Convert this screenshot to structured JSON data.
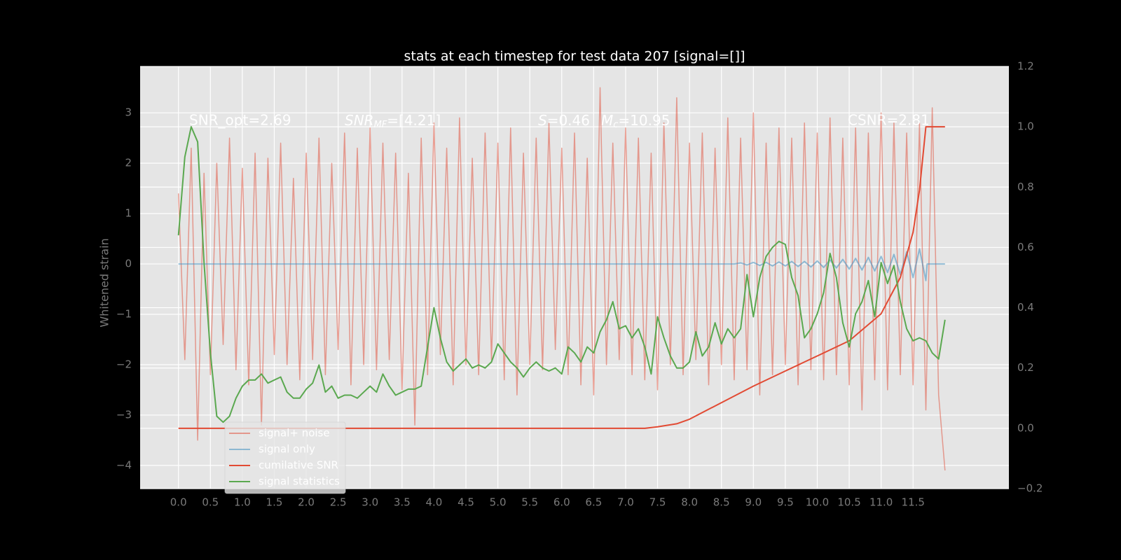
{
  "chart_data": {
    "type": "line",
    "title": "stats at each timestep for test data 207 [signal=[]]",
    "ylabel": "Whitened strain",
    "annotations": [
      "SNR_opt=2.69",
      {
        "text": "SNR",
        "sub": "MF",
        "rest": "=[4.21]"
      },
      {
        "text": "S",
        "rest": "=0.46"
      },
      {
        "text": "M",
        "sub": "c",
        "rest": "=10.95"
      },
      "CSNR=2.81"
    ],
    "x": [
      0,
      0.1,
      0.2,
      0.3,
      0.4,
      0.5,
      0.6,
      0.7,
      0.8,
      0.9,
      1,
      1.1,
      1.2,
      1.3,
      1.4,
      1.5,
      1.6,
      1.7,
      1.8,
      1.9,
      2,
      2.1,
      2.2,
      2.3,
      2.4,
      2.5,
      2.6,
      2.7,
      2.8,
      2.9,
      3,
      3.1,
      3.2,
      3.3,
      3.4,
      3.5,
      3.6,
      3.7,
      3.8,
      3.9,
      4,
      4.1,
      4.2,
      4.3,
      4.4,
      4.5,
      4.6,
      4.7,
      4.8,
      4.9,
      5,
      5.1,
      5.2,
      5.3,
      5.4,
      5.5,
      5.6,
      5.7,
      5.8,
      5.9,
      6,
      6.1,
      6.2,
      6.3,
      6.4,
      6.5,
      6.6,
      6.7,
      6.8,
      6.9,
      7,
      7.1,
      7.2,
      7.3,
      7.4,
      7.5,
      7.6,
      7.7,
      7.8,
      7.9,
      8,
      8.1,
      8.2,
      8.3,
      8.4,
      8.5,
      8.6,
      8.7,
      8.8,
      8.9,
      9,
      9.1,
      9.2,
      9.3,
      9.4,
      9.5,
      9.6,
      9.7,
      9.8,
      9.9,
      10,
      10.1,
      10.2,
      10.3,
      10.4,
      10.5,
      10.6,
      10.7,
      10.8,
      10.9,
      11,
      11.1,
      11.2,
      11.3,
      11.4,
      11.5,
      11.6,
      11.7,
      11.8,
      11.9,
      12
    ],
    "series": [
      {
        "name": "signal+ noise",
        "color": "#E24A33",
        "alpha": 0.5,
        "width": 1.5,
        "values": [
          1.4,
          -1.9,
          2.3,
          -3.5,
          1.8,
          -2.2,
          2.0,
          -1.6,
          2.5,
          -2.1,
          1.9,
          -2.4,
          2.2,
          -3.2,
          2.1,
          -1.8,
          2.4,
          -2.0,
          1.7,
          -2.3,
          2.2,
          -1.9,
          2.5,
          -2.2,
          2.0,
          -1.7,
          2.6,
          -2.4,
          2.3,
          -2.0,
          2.7,
          -2.1,
          2.4,
          -1.9,
          2.2,
          -2.5,
          1.8,
          -3.2,
          2.5,
          -2.2,
          2.8,
          -1.8,
          2.3,
          -2.4,
          2.9,
          -2.0,
          2.1,
          -2.2,
          2.6,
          -1.9,
          2.4,
          -2.3,
          2.7,
          -2.6,
          2.2,
          -2.0,
          2.5,
          -2.1,
          2.8,
          -1.7,
          2.3,
          -2.2,
          2.6,
          -2.4,
          2.1,
          -2.6,
          3.5,
          -2.0,
          2.4,
          -1.9,
          2.7,
          -2.2,
          2.5,
          -2.3,
          2.2,
          -2.5,
          2.8,
          -2.0,
          3.3,
          -2.2,
          2.4,
          -1.9,
          2.6,
          -2.4,
          2.3,
          -2.0,
          2.9,
          -2.3,
          2.5,
          -2.1,
          3.0,
          -2.6,
          2.4,
          -2.2,
          2.7,
          -2.0,
          2.5,
          -2.4,
          2.8,
          -2.1,
          2.6,
          -2.3,
          2.9,
          -2.2,
          2.5,
          -2.4,
          2.7,
          -2.9,
          2.6,
          -2.3,
          3.0,
          -2.5,
          2.8,
          -2.2,
          2.6,
          -2.4,
          2.8,
          -2.9,
          3.1,
          -2.6,
          -4.1
        ]
      },
      {
        "name": "signal only",
        "color": "#348ABD",
        "alpha": 0.5,
        "width": 2,
        "x": [
          0,
          8.7,
          8.8,
          8.9,
          9.0,
          9.1,
          9.2,
          9.3,
          9.4,
          9.5,
          9.6,
          9.7,
          9.8,
          9.9,
          10.0,
          10.1,
          10.2,
          10.3,
          10.4,
          10.5,
          10.6,
          10.7,
          10.8,
          10.9,
          11.0,
          11.1,
          11.2,
          11.3,
          11.4,
          11.5,
          11.6,
          11.7,
          11.72,
          12.0
        ],
        "values": [
          0,
          0,
          0.02,
          -0.02,
          0.03,
          -0.03,
          0.03,
          -0.04,
          0.04,
          -0.04,
          0.05,
          -0.05,
          0.05,
          -0.06,
          0.06,
          -0.07,
          0.08,
          -0.08,
          0.09,
          -0.1,
          0.11,
          -0.12,
          0.13,
          -0.14,
          0.15,
          -0.17,
          0.19,
          -0.21,
          0.24,
          -0.27,
          0.3,
          -0.33,
          0,
          0
        ]
      },
      {
        "name": "cumilative SNR",
        "color": "#E24A33",
        "alpha": 1,
        "width": 2,
        "axis": "y2",
        "x": [
          0,
          7.3,
          7.5,
          7.8,
          8.0,
          8.5,
          9.0,
          9.5,
          10.0,
          10.5,
          11.0,
          11.3,
          11.5,
          11.6,
          11.7,
          12.0
        ],
        "values": [
          0,
          0,
          0.005,
          0.015,
          0.03,
          0.085,
          0.14,
          0.19,
          0.24,
          0.29,
          0.38,
          0.5,
          0.65,
          0.79,
          1.0,
          1.0
        ]
      },
      {
        "name": "signal statistics",
        "color": "#5aa84f",
        "alpha": 1,
        "width": 2,
        "axis": "y2",
        "values": [
          0.64,
          0.9,
          1.0,
          0.95,
          0.55,
          0.25,
          0.04,
          0.02,
          0.04,
          0.1,
          0.14,
          0.16,
          0.16,
          0.18,
          0.15,
          0.16,
          0.17,
          0.12,
          0.1,
          0.1,
          0.13,
          0.15,
          0.21,
          0.12,
          0.14,
          0.1,
          0.11,
          0.11,
          0.1,
          0.12,
          0.14,
          0.12,
          0.18,
          0.14,
          0.11,
          0.12,
          0.13,
          0.13,
          0.14,
          0.27,
          0.4,
          0.3,
          0.22,
          0.19,
          0.21,
          0.23,
          0.2,
          0.21,
          0.2,
          0.22,
          0.28,
          0.25,
          0.22,
          0.2,
          0.17,
          0.2,
          0.22,
          0.2,
          0.19,
          0.2,
          0.18,
          0.27,
          0.25,
          0.22,
          0.27,
          0.25,
          0.32,
          0.36,
          0.42,
          0.33,
          0.34,
          0.3,
          0.33,
          0.27,
          0.18,
          0.37,
          0.3,
          0.24,
          0.2,
          0.2,
          0.22,
          0.32,
          0.24,
          0.27,
          0.35,
          0.28,
          0.33,
          0.3,
          0.33,
          0.51,
          0.37,
          0.5,
          0.57,
          0.6,
          0.62,
          0.61,
          0.5,
          0.44,
          0.3,
          0.33,
          0.38,
          0.45,
          0.58,
          0.5,
          0.35,
          0.27,
          0.38,
          0.42,
          0.49,
          0.37,
          0.55,
          0.48,
          0.54,
          0.42,
          0.33,
          0.29,
          0.3,
          0.29,
          0.25,
          0.23,
          0.36
        ]
      }
    ],
    "xlim": [
      -0.6,
      13.0
    ],
    "xticks": [
      {
        "value": 0,
        "label": "0.0"
      },
      0.5,
      {
        "value": 1,
        "label": "1.0"
      },
      1.5,
      {
        "value": 2,
        "label": "2.0"
      },
      2.5,
      {
        "value": 3,
        "label": "3.0"
      },
      3.5,
      {
        "value": 4,
        "label": "4.0"
      },
      4.5,
      {
        "value": 5,
        "label": "5.0"
      },
      5.5,
      {
        "value": 6,
        "label": "6.0"
      },
      6.5,
      {
        "value": 7,
        "label": "7.0"
      },
      7.5,
      {
        "value": 8,
        "label": "8.0"
      },
      8.5,
      {
        "value": 9,
        "label": "9.0"
      },
      9.5,
      {
        "value": 10,
        "label": "10.0"
      },
      10.5,
      {
        "value": 11,
        "label": "11.0"
      },
      11.5
    ],
    "ylim": [
      -4.46,
      3.92
    ],
    "yticks": [
      {
        "value": -4,
        "label": "−4"
      },
      {
        "value": -3,
        "label": "−3"
      },
      {
        "value": -2,
        "label": "−2"
      },
      {
        "value": -1,
        "label": "−1"
      },
      0,
      1,
      2,
      3
    ],
    "y2lim": [
      -0.2,
      1.2
    ],
    "y2ticks": [
      {
        "value": -0.2,
        "label": "−0.2"
      },
      {
        "value": 0,
        "label": "0.0"
      },
      0.2,
      0.4,
      0.6,
      0.8,
      {
        "value": 1,
        "label": "1.0"
      },
      1.2
    ],
    "grid": true,
    "legend": "lower left"
  }
}
